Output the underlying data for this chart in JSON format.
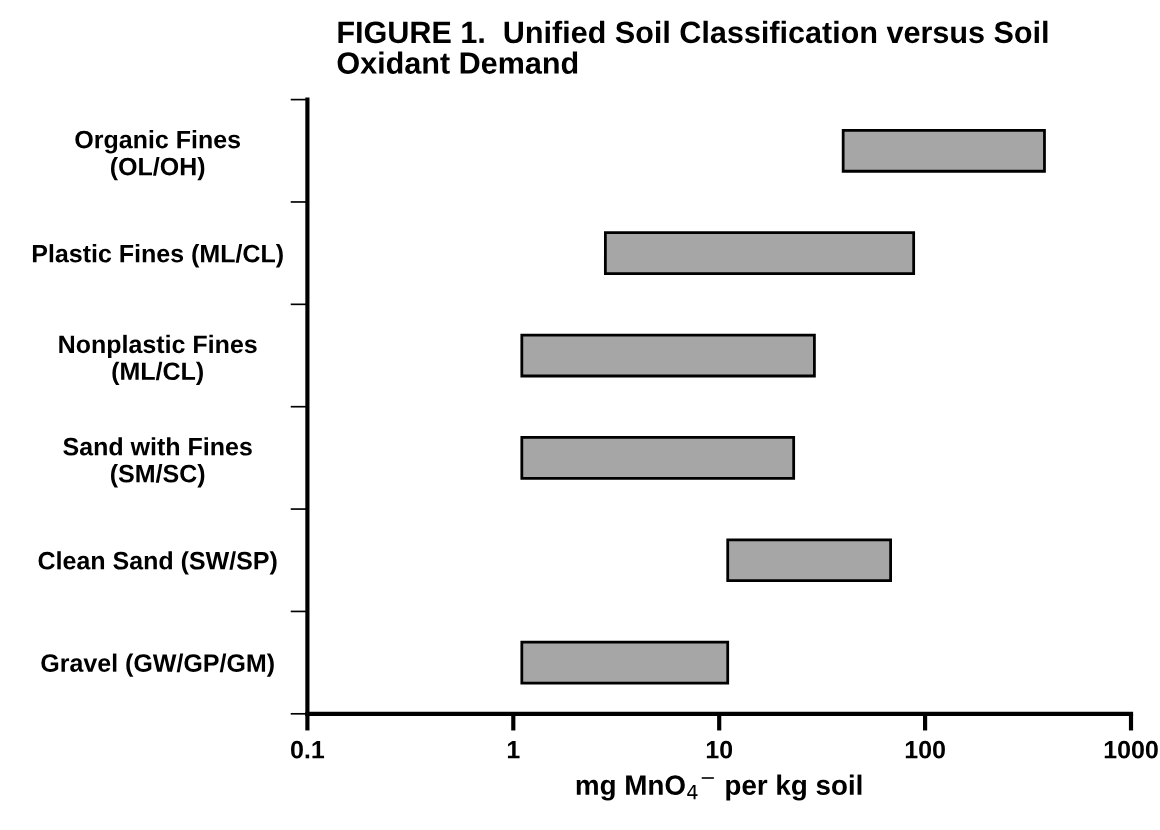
{
  "chart_data": {
    "type": "bar",
    "orientation": "horizontal",
    "log": "x",
    "title": "FIGURE 1.  Unified Soil Classification versus Soil\nOxidant Demand",
    "xlabel": "mg MnO$_{4}$$^{−}$ per kg soil",
    "categories": [
      "Organic Fines\n(OL/OH)",
      "Plastic Fines (ML/CL)",
      "Nonplastic Fines\n(ML/CL)",
      "Sand with Fines\n(SM/SC)",
      "Clean Sand (SW/SP)",
      "Gravel (GW/GP/GM)"
    ],
    "base": [
      40,
      2.8,
      1.1,
      1.1,
      11,
      1.1
    ],
    "values": [
      340,
      85.2,
      27.9,
      21.9,
      57,
      9.9
    ],
    "color": "#a6a6a6",
    "xlim": [
      0.1,
      1000
    ],
    "xticks": [
      0.1,
      1,
      10,
      100,
      1000
    ],
    "grid": false,
    "legend": false
  }
}
